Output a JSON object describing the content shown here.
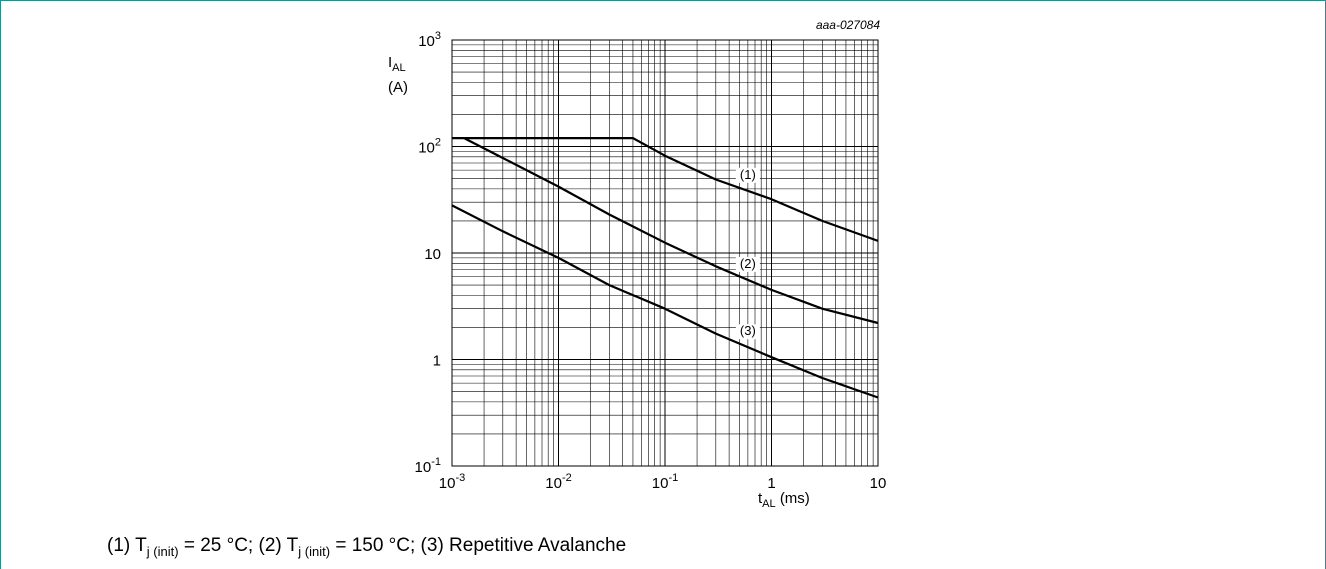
{
  "chart_data": {
    "type": "line",
    "x_scale": "log",
    "y_scale": "log",
    "xlim": [
      0.001,
      10
    ],
    "ylim": [
      0.1,
      1000
    ],
    "grid": true,
    "reference": "aaa-027084",
    "ylabel": {
      "main": "I",
      "sub": "AL",
      "unit": "(A)"
    },
    "xlabel": {
      "main": "t",
      "sub": "AL",
      "unit": "(ms)"
    },
    "x_ticks": [
      {
        "base": "10",
        "exp": "-3"
      },
      {
        "base": "10",
        "exp": "-2"
      },
      {
        "base": "10",
        "exp": "-1"
      },
      {
        "base": "1",
        "exp": ""
      },
      {
        "base": "10",
        "exp": ""
      }
    ],
    "y_ticks": [
      {
        "base": "10",
        "exp": "-1"
      },
      {
        "base": "1",
        "exp": ""
      },
      {
        "base": "10",
        "exp": ""
      },
      {
        "base": "10",
        "exp": "2"
      },
      {
        "base": "10",
        "exp": "3"
      }
    ],
    "series": [
      {
        "name": "(1)",
        "points": [
          [
            0.001,
            120
          ],
          [
            0.05,
            120
          ],
          [
            0.1,
            82
          ],
          [
            0.3,
            49
          ],
          [
            1,
            32
          ],
          [
            3,
            20
          ],
          [
            10,
            13
          ]
        ]
      },
      {
        "name": "(2)",
        "points": [
          [
            0.0013,
            120
          ],
          [
            0.003,
            78
          ],
          [
            0.01,
            42
          ],
          [
            0.03,
            23
          ],
          [
            0.1,
            12.5
          ],
          [
            0.3,
            7.5
          ],
          [
            1,
            4.5
          ],
          [
            3,
            3
          ],
          [
            10,
            2.2
          ]
        ]
      },
      {
        "name": "(3)",
        "points": [
          [
            0.001,
            28
          ],
          [
            0.003,
            16
          ],
          [
            0.01,
            9
          ],
          [
            0.03,
            5
          ],
          [
            0.1,
            3
          ],
          [
            0.3,
            1.75
          ],
          [
            1,
            1.05
          ],
          [
            3,
            0.67
          ],
          [
            10,
            0.44
          ]
        ]
      }
    ]
  },
  "caption": {
    "part1": "(1) T",
    "sub1": "j (init)",
    "part2": " = 25 °C; (2) T",
    "sub2": "j (init)",
    "part3": " = 150 °C; (3) Repetitive Avalanche"
  }
}
